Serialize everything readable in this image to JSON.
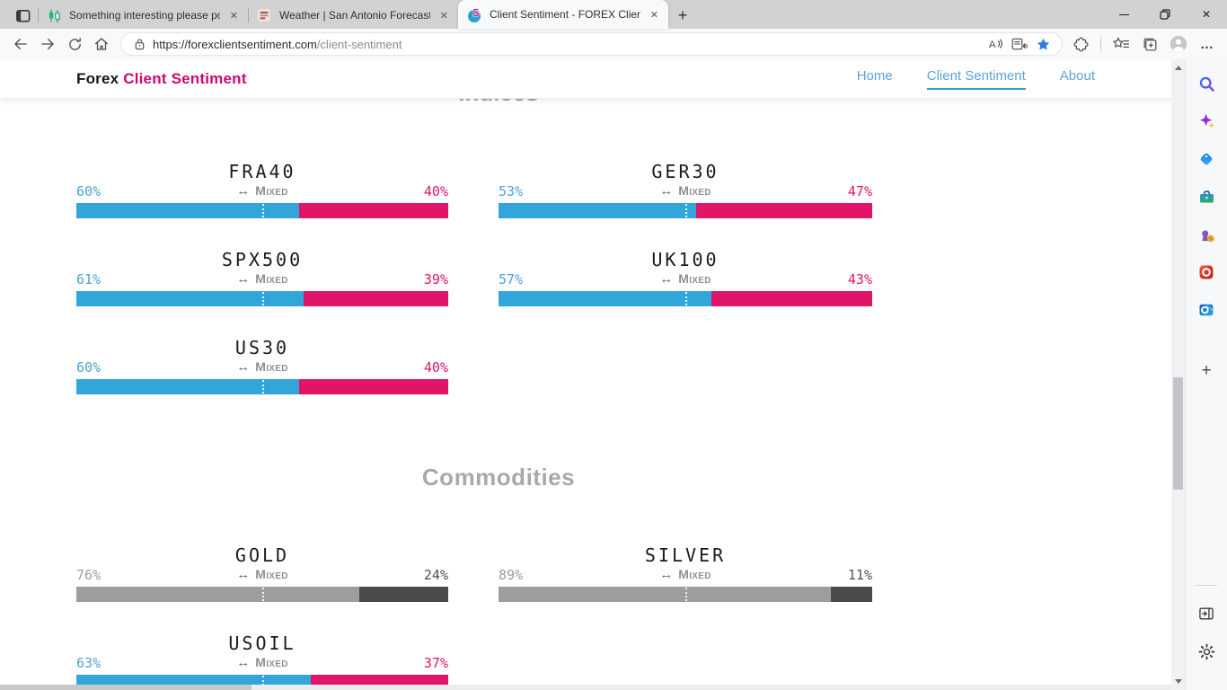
{
  "browser": {
    "tabs": [
      {
        "title": "Something interesting please po",
        "icon": "candlestick-chart-icon",
        "active": false
      },
      {
        "title": "Weather | San Antonio Forecast,",
        "icon": "weather-site-icon",
        "active": false
      },
      {
        "title": "Client Sentiment - FOREX Client",
        "icon": "sentiment-logo-icon",
        "active": true
      }
    ],
    "address": {
      "url_main": "https://forexclientsentiment.com",
      "url_path": "/client-sentiment"
    }
  },
  "icons": {
    "mixed_arrow": "↔",
    "new_tab": "+",
    "close_tab": "✕",
    "close_window": "✕",
    "more_options": "…"
  },
  "page": {
    "brand": {
      "name": "Forex",
      "accent": "Client Sentiment"
    },
    "nav": [
      {
        "label": "Home",
        "active": false
      },
      {
        "label": "Client Sentiment",
        "active": true
      },
      {
        "label": "About",
        "active": false
      }
    ],
    "sections": [
      {
        "heading": "Indices",
        "instruments": [
          {
            "symbol": "FRA40",
            "long_pct": 60,
            "short_pct": 40,
            "label": "Mixed",
            "style": "colored"
          },
          {
            "symbol": "GER30",
            "long_pct": 53,
            "short_pct": 47,
            "label": "Mixed",
            "style": "colored"
          },
          {
            "symbol": "SPX500",
            "long_pct": 61,
            "short_pct": 39,
            "label": "Mixed",
            "style": "colored"
          },
          {
            "symbol": "UK100",
            "long_pct": 57,
            "short_pct": 43,
            "label": "Mixed",
            "style": "colored"
          },
          {
            "symbol": "US30",
            "long_pct": 60,
            "short_pct": 40,
            "label": "Mixed",
            "style": "colored"
          }
        ]
      },
      {
        "heading": "Commodities",
        "instruments": [
          {
            "symbol": "GOLD",
            "long_pct": 76,
            "short_pct": 24,
            "label": "Mixed",
            "style": "gray"
          },
          {
            "symbol": "SILVER",
            "long_pct": 89,
            "short_pct": 11,
            "label": "Mixed",
            "style": "gray"
          },
          {
            "symbol": "USOIL",
            "long_pct": 63,
            "short_pct": 37,
            "label": "Mixed",
            "style": "colored"
          }
        ]
      }
    ]
  },
  "colors": {
    "long_blue": "#31a6da",
    "short_pink": "#e01468",
    "gray_long": "#9d9d9d",
    "gray_short": "#4a4a4a",
    "brand_accent": "#ca0a70",
    "nav_blue": "#5ba4d5",
    "heading_gray": "#a9a9a9"
  }
}
